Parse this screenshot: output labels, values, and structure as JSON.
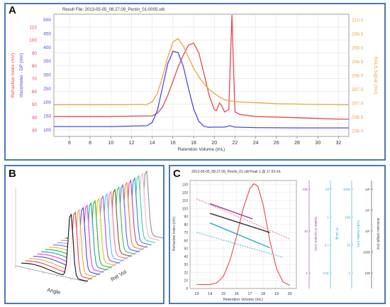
{
  "panels": {
    "a": {
      "label": "A"
    },
    "b": {
      "label": "B"
    },
    "c": {
      "label": "C"
    }
  },
  "colors": {
    "frame": "#4a78b8",
    "red": "#e8474c",
    "orange": "#eea23e",
    "blue": "#4a4ae0",
    "black": "#333333",
    "teal": "#28a8c8",
    "lightblue": "#7cc4e4",
    "purple": "#9a3a9a",
    "salmon": "#e89a9a"
  },
  "chart_data": [
    {
      "type": "line",
      "id": "A",
      "title": "Result File: 2013-05-05_08.27.09_Pectin_01-0005.vdt",
      "xlabel": "Retention Volume (mL)",
      "xlim": [
        4.5,
        33
      ],
      "xticks": [
        6,
        8,
        10,
        12,
        14,
        16,
        18,
        20,
        22,
        24,
        26,
        28,
        30,
        32
      ],
      "left_axes": [
        {
          "label": "Refractive Index (mV)",
          "color": "#e8474c",
          "ticks": [
            30,
            40,
            50,
            60,
            70,
            80,
            90,
            100,
            110
          ]
        },
        {
          "label": "Viscometer - DP (mV)",
          "color": "#4a4ae0",
          "ticks": [
            100,
            150,
            200,
            250,
            300,
            350,
            400,
            450,
            500
          ]
        }
      ],
      "right_axis": {
        "label": "RALS Signal (mV)",
        "color": "#eea23e",
        "ticks": [
          206.0,
          206.5,
          207.0,
          207.5,
          208.0,
          208.5,
          209.0,
          209.5,
          210.0
        ]
      },
      "series": [
        {
          "color": "red",
          "x": [
            4.5,
            10,
            14,
            14.5,
            15,
            15.5,
            16,
            16.5,
            17,
            17.5,
            18,
            18.5,
            19,
            19.5,
            20,
            20.2,
            20.5,
            20.7,
            21,
            21.4,
            21.55,
            21.7,
            21.85,
            22,
            22.5,
            24,
            26,
            28,
            30,
            32,
            33
          ],
          "y": [
            40.5,
            40.5,
            41,
            43,
            48,
            57,
            68,
            79,
            88,
            96,
            97.5,
            90,
            74,
            57,
            46,
            45,
            51,
            49,
            44,
            46,
            85,
            120,
            80,
            44,
            42,
            40.5,
            40,
            39.5,
            39,
            38.5,
            38.5
          ]
        },
        {
          "color": "orange",
          "x": [
            4.5,
            10,
            13.5,
            14,
            14.5,
            15,
            15.5,
            16,
            16.5,
            17,
            17.5,
            18,
            18.5,
            19,
            19.5,
            20,
            20.5,
            21,
            22,
            26,
            30,
            33
          ],
          "y": [
            206.94,
            206.94,
            206.95,
            207.05,
            207.35,
            207.95,
            208.65,
            209.2,
            209.32,
            209.05,
            208.65,
            208.25,
            207.95,
            207.7,
            207.5,
            207.35,
            207.22,
            207.12,
            207.05,
            206.98,
            206.95,
            206.94
          ]
        },
        {
          "color": "blue",
          "x": [
            4.5,
            10,
            13.5,
            14,
            14.5,
            15,
            15.5,
            16,
            16.5,
            17,
            17.5,
            18,
            18.5,
            19,
            19.5,
            20,
            20.5,
            21,
            21.5,
            22,
            24,
            28,
            33
          ],
          "y": [
            111,
            111,
            114,
            126,
            170,
            255,
            340,
            385,
            380,
            330,
            250,
            175,
            130,
            112,
            108,
            109,
            109,
            109,
            114,
            109,
            107,
            106,
            106
          ]
        }
      ]
    },
    {
      "type": "area",
      "id": "B",
      "xlabel": "Angle",
      "zlabel": "Ret Vol",
      "traces": 20
    },
    {
      "type": "line",
      "id": "C",
      "title": "2013-05-05_08.27.09_Pectin_01.vdt  Peak 1 @ 17.63 mL",
      "xlabel": "Retention Volume (mL)",
      "xlim": [
        12.5,
        20.5
      ],
      "xticks": [
        13,
        14,
        15,
        16,
        17,
        18,
        19,
        20
      ],
      "left_axis": {
        "label": "Refractive Index (mV)",
        "ticks": [
          0,
          10,
          20,
          30,
          40,
          50,
          60,
          70,
          80,
          90,
          100,
          110,
          120,
          130
        ]
      },
      "right_axes": [
        {
          "label": "Radius of Gyration (nm)",
          "ticks": [
            "1",
            "10",
            "100"
          ]
        },
        {
          "label": "IV (dL/g)",
          "ticks": [
            "0.01",
            "0.1",
            "1",
            "10"
          ]
        },
        {
          "label": "Hydro Radius (nm)",
          "ticks": [
            "1",
            "10",
            "100",
            "1000"
          ]
        },
        {
          "label": "Molecular Weight (Da)",
          "ticks": [
            "100",
            "1000",
            "10⁴",
            "10⁵",
            "10⁶"
          ]
        }
      ],
      "series": [
        {
          "color": "red",
          "x": [
            13,
            14,
            14.5,
            15,
            15.5,
            16,
            16.5,
            17,
            17.3,
            17.6,
            18,
            18.5,
            19,
            19.5,
            20
          ],
          "y": [
            5,
            5,
            7,
            15,
            35,
            65,
            100,
            125,
            131,
            128,
            105,
            60,
            25,
            8,
            4
          ]
        },
        {
          "color": "salmon",
          "x": [
            13,
            20
          ],
          "y": [
            112,
            62
          ]
        },
        {
          "color": "purple",
          "x": [
            14,
            17.2
          ],
          "y": [
            106,
            87
          ]
        },
        {
          "color": "black",
          "x": [
            14,
            18.5
          ],
          "y": [
            94,
            70
          ]
        },
        {
          "color": "teal",
          "x": [
            14,
            18.5
          ],
          "y": [
            82,
            51
          ]
        },
        {
          "color": "lightblue",
          "x": [
            13,
            19.5
          ],
          "y": [
            70,
            39
          ]
        }
      ]
    }
  ]
}
